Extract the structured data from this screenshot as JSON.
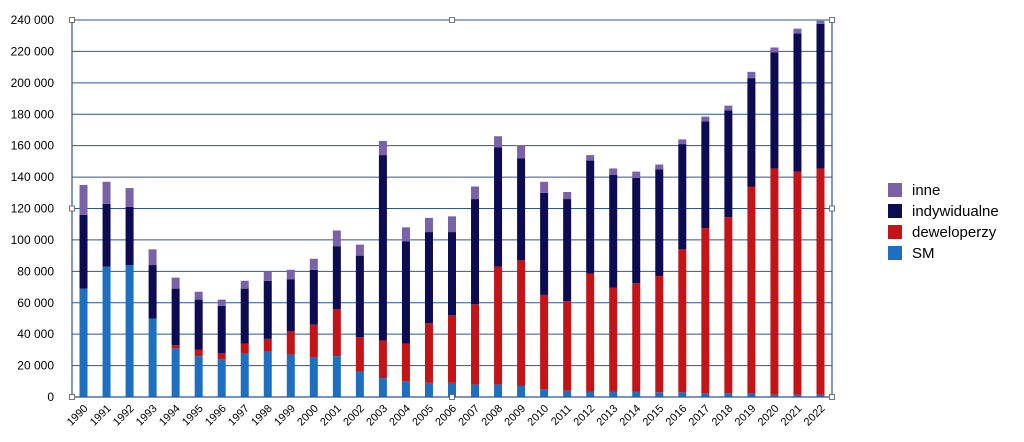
{
  "chart_data": {
    "type": "bar",
    "stacked": true,
    "title": "",
    "xlabel": "",
    "ylabel": "",
    "ylim": [
      0,
      240000
    ],
    "y_ticks": [
      0,
      20000,
      40000,
      60000,
      80000,
      100000,
      120000,
      140000,
      160000,
      180000,
      200000,
      220000,
      240000
    ],
    "y_tick_labels": [
      "0",
      "20 000",
      "40 000",
      "60 000",
      "80 000",
      "100 000",
      "120 000",
      "140 000",
      "160 000",
      "180 000",
      "200 000",
      "220 000",
      "240 000"
    ],
    "grid": true,
    "legend_position": "right",
    "categories": [
      "1990",
      "1991",
      "1992",
      "1993",
      "1994",
      "1995",
      "1996",
      "1997",
      "1998",
      "1999",
      "2000",
      "2001",
      "2002",
      "2003",
      "2004",
      "2005",
      "2006",
      "2007",
      "2008",
      "2009",
      "2010",
      "2011",
      "2012",
      "2013",
      "2014",
      "2015",
      "2016",
      "2017",
      "2018",
      "2019",
      "2020",
      "2021",
      "2022"
    ],
    "series": [
      {
        "name": "SM",
        "color": "#1f6fc1",
        "values": [
          69000,
          83000,
          84000,
          50000,
          31000,
          26000,
          24000,
          28000,
          29000,
          27000,
          25000,
          26000,
          16000,
          12000,
          10000,
          9000,
          9000,
          8000,
          8000,
          7000,
          5000,
          4000,
          3500,
          3500,
          3500,
          3000,
          3000,
          2500,
          2500,
          2000,
          1500,
          1500,
          1500
        ]
      },
      {
        "name": "deweloperzy",
        "color": "#c41418",
        "values": [
          0,
          0,
          0,
          0,
          2000,
          4000,
          4000,
          6000,
          8000,
          15000,
          21000,
          30000,
          22000,
          24000,
          24000,
          38000,
          43000,
          51000,
          75000,
          80000,
          60000,
          57000,
          75000,
          66000,
          69000,
          74000,
          91000,
          105000,
          112000,
          132000,
          144000,
          142000,
          144000
        ]
      },
      {
        "name": "indywidualne",
        "color": "#0d0b52",
        "values": [
          47000,
          40000,
          37000,
          34000,
          36000,
          32000,
          30000,
          35000,
          37000,
          33000,
          35000,
          40000,
          52000,
          118000,
          65000,
          58000,
          53000,
          67000,
          76000,
          65000,
          65000,
          65000,
          72000,
          72000,
          67000,
          68000,
          67000,
          68000,
          68000,
          69000,
          74000,
          88000,
          92000
        ]
      },
      {
        "name": "inne",
        "color": "#7a62a8",
        "values": [
          19000,
          14000,
          12000,
          10000,
          7000,
          5000,
          4000,
          5000,
          6000,
          6000,
          7000,
          10000,
          7000,
          9000,
          9000,
          9000,
          10000,
          8000,
          7000,
          8000,
          7000,
          4500,
          3500,
          4000,
          4000,
          3000,
          3000,
          3000,
          3000,
          4000,
          3000,
          3000,
          2000
        ]
      }
    ]
  },
  "legend": {
    "items": [
      {
        "label": "inne",
        "color": "#7a62a8"
      },
      {
        "label": "indywidualne",
        "color": "#0d0b52"
      },
      {
        "label": "deweloperzy",
        "color": "#c41418"
      },
      {
        "label": "SM",
        "color": "#1f6fc1"
      }
    ]
  }
}
